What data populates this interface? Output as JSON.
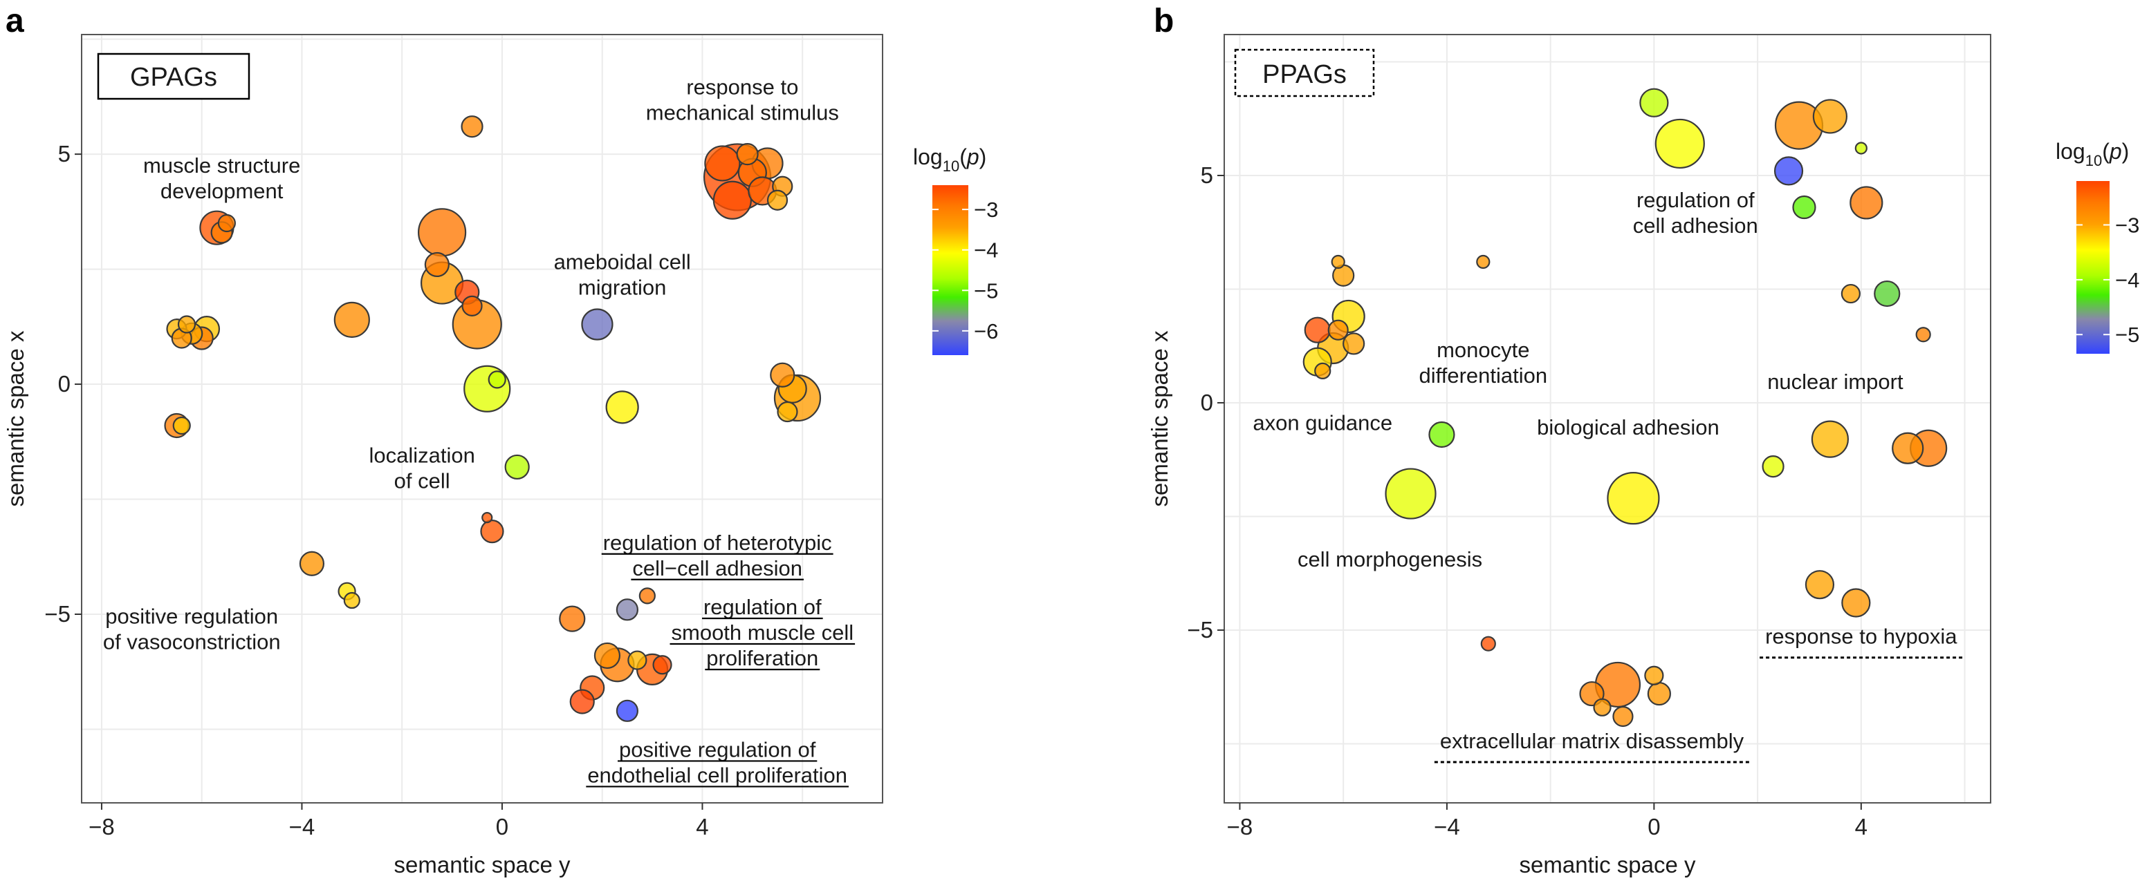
{
  "colors": {
    "scale_high": "#ff4400",
    "scale_mid_orange": "#ffa000",
    "scale_yellow": "#ffff00",
    "scale_green": "#44ee00",
    "scale_gray": "#8888aa",
    "scale_low": "#3344ff",
    "stroke": "#3a3a3a"
  },
  "chart_data": [
    {
      "type": "scatter",
      "panel_label": "a",
      "tag": "GPAGs",
      "tag_style": "solid",
      "xlabel": "semantic space y",
      "ylabel": "semantic space x",
      "xlim": [
        -8.4,
        7.6
      ],
      "ylim": [
        -9.1,
        7.6
      ],
      "xticks": [
        -8,
        -4,
        0,
        4
      ],
      "yticks": [
        -5,
        0,
        5
      ],
      "grid": true,
      "legend": {
        "position": "right",
        "title_base": "log",
        "title_sub": "10",
        "title_var": "p",
        "range": [
          -6.6,
          -2.4
        ],
        "ticks": [
          -3,
          -4,
          -5,
          -6
        ],
        "tick_labels": [
          "−3",
          "−4",
          "−5",
          "−6"
        ]
      },
      "points": [
        {
          "x": 4.7,
          "y": 4.5,
          "r": 48,
          "value": -2.5
        },
        {
          "x": 4.4,
          "y": 4.8,
          "r": 25,
          "value": -2.6
        },
        {
          "x": 4.6,
          "y": 4.0,
          "r": 27,
          "value": -2.5
        },
        {
          "x": 5.0,
          "y": 4.6,
          "r": 20,
          "value": -2.8
        },
        {
          "x": 5.2,
          "y": 4.2,
          "r": 20,
          "value": -2.7
        },
        {
          "x": 5.3,
          "y": 4.8,
          "r": 22,
          "value": -3.0
        },
        {
          "x": 5.6,
          "y": 4.3,
          "r": 14,
          "value": -3.3
        },
        {
          "x": 5.5,
          "y": 4.0,
          "r": 14,
          "value": -3.5
        },
        {
          "x": 4.9,
          "y": 5.0,
          "r": 15,
          "value": -3.0
        },
        {
          "x": -0.6,
          "y": 5.6,
          "r": 15,
          "value": -3.1
        },
        {
          "x": -5.7,
          "y": 3.4,
          "r": 24,
          "value": -2.6
        },
        {
          "x": -5.6,
          "y": 3.3,
          "r": 15,
          "value": -3.0
        },
        {
          "x": -5.5,
          "y": 3.5,
          "r": 12,
          "value": -3.0
        },
        {
          "x": -1.2,
          "y": 3.3,
          "r": 34,
          "value": -2.9
        },
        {
          "x": -1.2,
          "y": 2.2,
          "r": 30,
          "value": -3.4
        },
        {
          "x": -1.3,
          "y": 2.6,
          "r": 17,
          "value": -3.0
        },
        {
          "x": -0.7,
          "y": 2.0,
          "r": 17,
          "value": -2.4
        },
        {
          "x": -0.6,
          "y": 1.7,
          "r": 14,
          "value": -2.8
        },
        {
          "x": -0.5,
          "y": 1.3,
          "r": 35,
          "value": -3.2
        },
        {
          "x": -3.0,
          "y": 1.4,
          "r": 25,
          "value": -3.2
        },
        {
          "x": -6.5,
          "y": 1.2,
          "r": 14,
          "value": -3.6
        },
        {
          "x": -6.2,
          "y": 1.1,
          "r": 15,
          "value": -3.5
        },
        {
          "x": -6.4,
          "y": 1.0,
          "r": 14,
          "value": -3.3
        },
        {
          "x": -6.0,
          "y": 1.0,
          "r": 16,
          "value": -3.0
        },
        {
          "x": -5.9,
          "y": 1.2,
          "r": 18,
          "value": -3.7
        },
        {
          "x": -6.3,
          "y": 1.3,
          "r": 12,
          "value": -3.5
        },
        {
          "x": 1.9,
          "y": 1.3,
          "r": 22,
          "value": -6.0
        },
        {
          "x": -0.3,
          "y": -0.1,
          "r": 33,
          "value": -4.3
        },
        {
          "x": -0.1,
          "y": 0.1,
          "r": 12,
          "value": -4.5
        },
        {
          "x": 2.4,
          "y": -0.5,
          "r": 23,
          "value": -4.0
        },
        {
          "x": 5.6,
          "y": 0.2,
          "r": 17,
          "value": -3.2
        },
        {
          "x": 5.9,
          "y": -0.3,
          "r": 33,
          "value": -3.4
        },
        {
          "x": 5.8,
          "y": -0.1,
          "r": 20,
          "value": -3.5
        },
        {
          "x": 5.7,
          "y": -0.6,
          "r": 14,
          "value": -3.6
        },
        {
          "x": -6.5,
          "y": -0.9,
          "r": 17,
          "value": -3.0
        },
        {
          "x": -6.4,
          "y": -0.9,
          "r": 12,
          "value": -3.7
        },
        {
          "x": 0.3,
          "y": -1.8,
          "r": 17,
          "value": -4.6
        },
        {
          "x": -0.2,
          "y": -3.2,
          "r": 16,
          "value": -2.6
        },
        {
          "x": -0.3,
          "y": -2.9,
          "r": 7,
          "value": -2.6
        },
        {
          "x": -3.8,
          "y": -3.9,
          "r": 17,
          "value": -3.3
        },
        {
          "x": -3.1,
          "y": -4.5,
          "r": 12,
          "value": -3.9
        },
        {
          "x": -3.0,
          "y": -4.7,
          "r": 11,
          "value": -3.7
        },
        {
          "x": 1.4,
          "y": -5.1,
          "r": 18,
          "value": -2.9
        },
        {
          "x": 2.5,
          "y": -4.9,
          "r": 15,
          "value": -5.8
        },
        {
          "x": 2.9,
          "y": -4.6,
          "r": 11,
          "value": -2.9
        },
        {
          "x": 2.1,
          "y": -5.9,
          "r": 18,
          "value": -3.2
        },
        {
          "x": 2.3,
          "y": -6.1,
          "r": 24,
          "value": -3.0
        },
        {
          "x": 2.7,
          "y": -6.0,
          "r": 13,
          "value": -3.6
        },
        {
          "x": 3.0,
          "y": -6.2,
          "r": 22,
          "value": -2.7
        },
        {
          "x": 3.2,
          "y": -6.1,
          "r": 13,
          "value": -2.5
        },
        {
          "x": 1.8,
          "y": -6.6,
          "r": 17,
          "value": -2.6
        },
        {
          "x": 1.6,
          "y": -6.9,
          "r": 17,
          "value": -2.4
        },
        {
          "x": 2.5,
          "y": -7.1,
          "r": 15,
          "value": -6.6
        }
      ],
      "annotations": [
        {
          "lines": [
            "response to",
            "mechanical stimulus"
          ],
          "x": 4.8,
          "y": 6.3,
          "style": "plain"
        },
        {
          "lines": [
            "muscle structure",
            "development"
          ],
          "x": -5.6,
          "y": 4.6,
          "style": "plain"
        },
        {
          "lines": [
            "ameboidal cell",
            "migration"
          ],
          "x": 2.4,
          "y": 2.5,
          "style": "plain"
        },
        {
          "lines": [
            "localization",
            "of cell"
          ],
          "x": -1.6,
          "y": -1.7,
          "style": "plain"
        },
        {
          "lines": [
            "positive regulation",
            "of vasoconstriction"
          ],
          "x": -6.2,
          "y": -5.2,
          "style": "plain"
        },
        {
          "lines": [
            "regulation of heterotypic",
            "cell−cell adhesion"
          ],
          "x": 4.3,
          "y": -3.6,
          "style": "underline"
        },
        {
          "lines": [
            "regulation of",
            "smooth muscle cell",
            "proliferation"
          ],
          "x": 5.2,
          "y": -5.0,
          "style": "underline"
        },
        {
          "lines": [
            "positive regulation of",
            "endothelial cell proliferation"
          ],
          "x": 4.3,
          "y": -8.1,
          "style": "underline"
        }
      ]
    },
    {
      "type": "scatter",
      "panel_label": "b",
      "tag": "PPAGs",
      "tag_style": "dashed",
      "xlabel": "semantic space y",
      "ylabel": "semantic space x",
      "xlim": [
        -8.3,
        6.5
      ],
      "ylim": [
        -8.8,
        8.1
      ],
      "xticks": [
        -8,
        -4,
        0,
        4
      ],
      "yticks": [
        -5,
        0,
        5
      ],
      "grid": true,
      "legend": {
        "position": "right",
        "title_base": "log",
        "title_sub": "10",
        "title_var": "p",
        "range": [
          -5.35,
          -2.2
        ],
        "ticks": [
          -3,
          -4,
          -5
        ],
        "tick_labels": [
          "−3",
          "−4",
          "−5"
        ]
      },
      "points": [
        {
          "x": 0.0,
          "y": 6.6,
          "r": 20,
          "value": -3.8
        },
        {
          "x": 0.5,
          "y": 5.7,
          "r": 35,
          "value": -3.5
        },
        {
          "x": 2.8,
          "y": 6.1,
          "r": 34,
          "value": -2.8
        },
        {
          "x": 3.4,
          "y": 6.3,
          "r": 24,
          "value": -3.0
        },
        {
          "x": 2.6,
          "y": 5.1,
          "r": 20,
          "value": -5.3
        },
        {
          "x": 2.9,
          "y": 4.3,
          "r": 16,
          "value": -4.2
        },
        {
          "x": 4.1,
          "y": 4.4,
          "r": 23,
          "value": -2.6
        },
        {
          "x": 4.0,
          "y": 5.6,
          "r": 8,
          "value": -3.7
        },
        {
          "x": -3.3,
          "y": 3.1,
          "r": 9,
          "value": -2.9
        },
        {
          "x": 3.8,
          "y": 2.4,
          "r": 13,
          "value": -3.0
        },
        {
          "x": 4.5,
          "y": 2.4,
          "r": 18,
          "value": -4.4
        },
        {
          "x": 5.2,
          "y": 1.5,
          "r": 10,
          "value": -2.7
        },
        {
          "x": -6.1,
          "y": 3.1,
          "r": 9,
          "value": -3.0
        },
        {
          "x": -6.0,
          "y": 2.8,
          "r": 15,
          "value": -3.0
        },
        {
          "x": -5.9,
          "y": 1.9,
          "r": 23,
          "value": -3.3
        },
        {
          "x": -6.5,
          "y": 1.6,
          "r": 18,
          "value": -2.3
        },
        {
          "x": -6.2,
          "y": 1.2,
          "r": 22,
          "value": -3.1
        },
        {
          "x": -6.5,
          "y": 0.9,
          "r": 20,
          "value": -3.3
        },
        {
          "x": -6.1,
          "y": 1.6,
          "r": 14,
          "value": -2.8
        },
        {
          "x": -5.8,
          "y": 1.3,
          "r": 15,
          "value": -3.0
        },
        {
          "x": -6.4,
          "y": 0.7,
          "r": 11,
          "value": -3.0
        },
        {
          "x": -4.1,
          "y": -0.7,
          "r": 18,
          "value": -4.1
        },
        {
          "x": -4.7,
          "y": -2.0,
          "r": 36,
          "value": -3.6
        },
        {
          "x": -0.4,
          "y": -2.1,
          "r": 37,
          "value": -3.4
        },
        {
          "x": 2.3,
          "y": -1.4,
          "r": 15,
          "value": -3.6
        },
        {
          "x": 3.4,
          "y": -0.8,
          "r": 26,
          "value": -3.1
        },
        {
          "x": 4.9,
          "y": -1.0,
          "r": 22,
          "value": -2.8
        },
        {
          "x": 5.3,
          "y": -1.0,
          "r": 26,
          "value": -2.6
        },
        {
          "x": 3.2,
          "y": -4.0,
          "r": 20,
          "value": -3.0
        },
        {
          "x": 3.9,
          "y": -4.4,
          "r": 20,
          "value": -2.9
        },
        {
          "x": -3.2,
          "y": -5.3,
          "r": 10,
          "value": -2.3
        },
        {
          "x": -0.7,
          "y": -6.2,
          "r": 32,
          "value": -2.6
        },
        {
          "x": -1.2,
          "y": -6.4,
          "r": 17,
          "value": -2.7
        },
        {
          "x": 0.1,
          "y": -6.4,
          "r": 16,
          "value": -2.9
        },
        {
          "x": -0.6,
          "y": -6.9,
          "r": 14,
          "value": -2.8
        },
        {
          "x": -1.0,
          "y": -6.7,
          "r": 12,
          "value": -2.9
        },
        {
          "x": 0.0,
          "y": -6.0,
          "r": 13,
          "value": -3.0
        }
      ],
      "annotations": [
        {
          "lines": [
            "regulation of",
            "cell adhesion"
          ],
          "x": 0.8,
          "y": 4.3,
          "style": "plain"
        },
        {
          "lines": [
            "monocyte",
            "differentiation"
          ],
          "x": -3.3,
          "y": 1.0,
          "style": "plain"
        },
        {
          "lines": [
            "nuclear import"
          ],
          "x": 3.5,
          "y": 0.3,
          "style": "plain"
        },
        {
          "lines": [
            "axon guidance"
          ],
          "x": -6.4,
          "y": -0.6,
          "style": "plain"
        },
        {
          "lines": [
            "biological adhesion"
          ],
          "x": -0.5,
          "y": -0.7,
          "style": "plain"
        },
        {
          "lines": [
            "cell morphogenesis"
          ],
          "x": -5.1,
          "y": -3.6,
          "style": "plain"
        },
        {
          "lines": [
            "response to hypoxia"
          ],
          "x": 4.0,
          "y": -5.3,
          "style": "dashed-underline"
        },
        {
          "lines": [
            "extracellular matrix disassembly"
          ],
          "x": -1.2,
          "y": -7.6,
          "style": "dashed-underline"
        }
      ]
    }
  ]
}
